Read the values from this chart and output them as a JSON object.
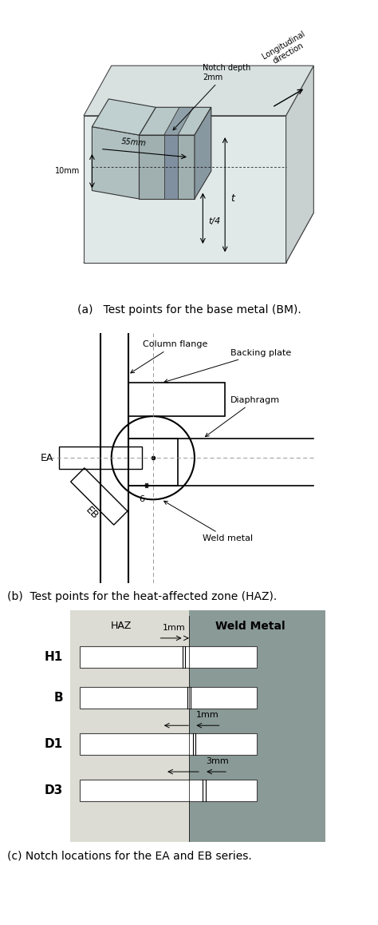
{
  "fig_width": 4.74,
  "fig_height": 11.58,
  "bg_color": "#ffffff",
  "caption_a": "(a)   Test points for the base metal (BM).",
  "caption_b": "(b)  Test points for the heat-affected zone (HAZ).",
  "caption_c": "(c) Notch locations for the EA and EB series.",
  "haz_color": "#d8d8d0",
  "weld_color": "#8a9a96",
  "panel_bg_color": "#e8e8e0"
}
